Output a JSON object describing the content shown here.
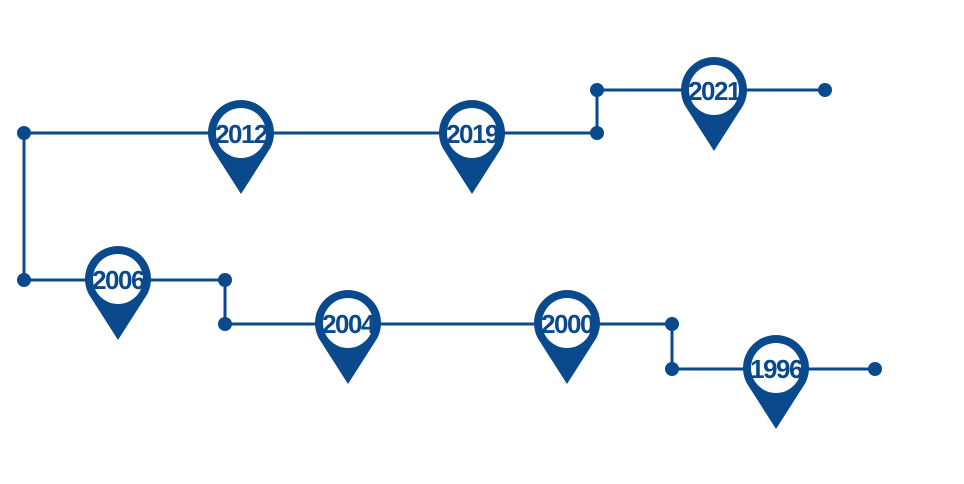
{
  "colors": {
    "primary": "#0a4a8c",
    "pin_fill": "#ffffff"
  },
  "markers": [
    {
      "year": "2012"
    },
    {
      "year": "2019"
    },
    {
      "year": "2021"
    },
    {
      "year": "2006"
    },
    {
      "year": "2004"
    },
    {
      "year": "2000"
    },
    {
      "year": "1996"
    }
  ]
}
